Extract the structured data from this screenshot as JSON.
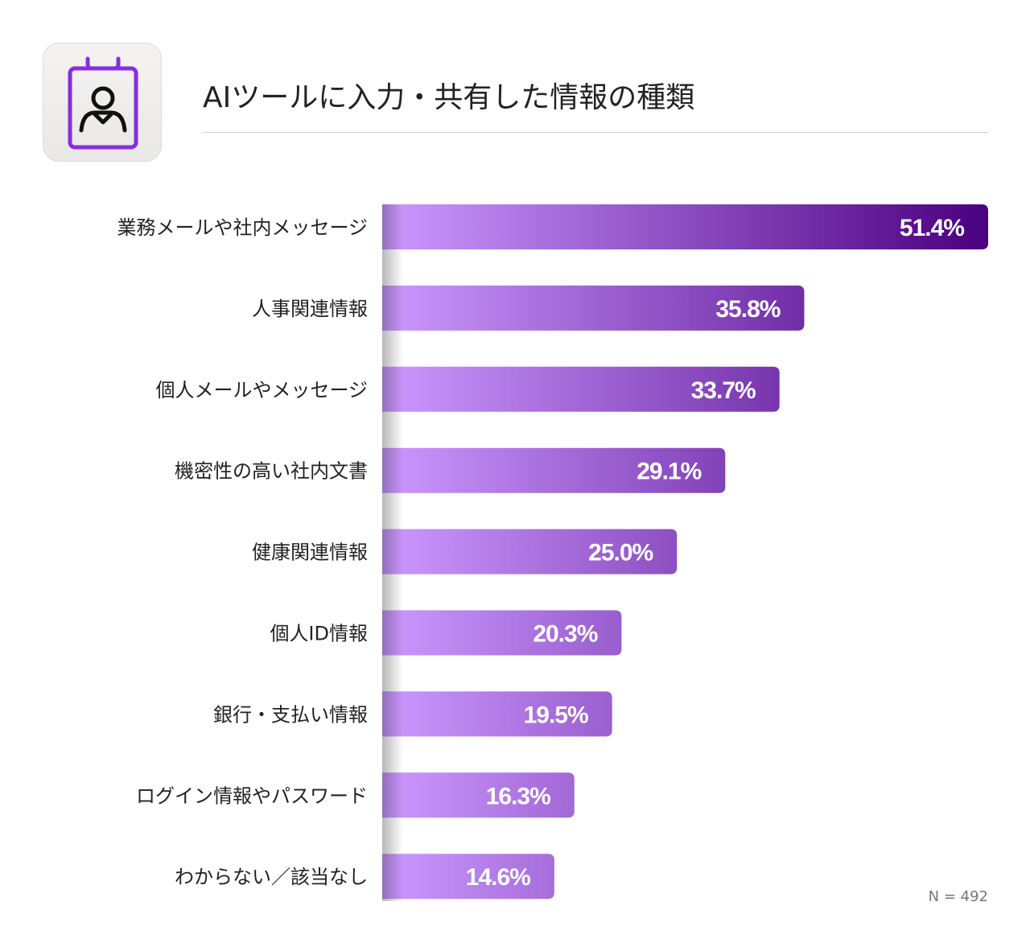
{
  "header": {
    "title": "AIツールに入力・共有した情報の種類",
    "icon": "id-badge-icon",
    "icon_color": "#8a2be2"
  },
  "footer": {
    "sample_size": "N = 492"
  },
  "colors": {
    "bar_light": "#cc99ff",
    "bar_dark": "#4a0080",
    "value_text": "#ffffff",
    "label_text": "#222222"
  },
  "chart_data": {
    "type": "bar",
    "orientation": "horizontal",
    "title": "AIツールに入力・共有した情報の種類",
    "categories": [
      "業務メールや社内メッセージ",
      "人事関連情報",
      "個人メールやメッセージ",
      "機密性の高い社内文書",
      "健康関連情報",
      "個人ID情報",
      "銀行・支払い情報",
      "ログイン情報やパスワード",
      "わからない／該当なし"
    ],
    "values": [
      51.4,
      35.8,
      33.7,
      29.1,
      25.0,
      20.3,
      19.5,
      16.3,
      14.6
    ],
    "value_labels": [
      "51.4%",
      "35.8%",
      "33.7%",
      "29.1%",
      "25.0%",
      "20.3%",
      "19.5%",
      "16.3%",
      "14.6%"
    ],
    "xlim": [
      0,
      51.4
    ],
    "unit": "%",
    "grid": false,
    "legend": "none"
  }
}
